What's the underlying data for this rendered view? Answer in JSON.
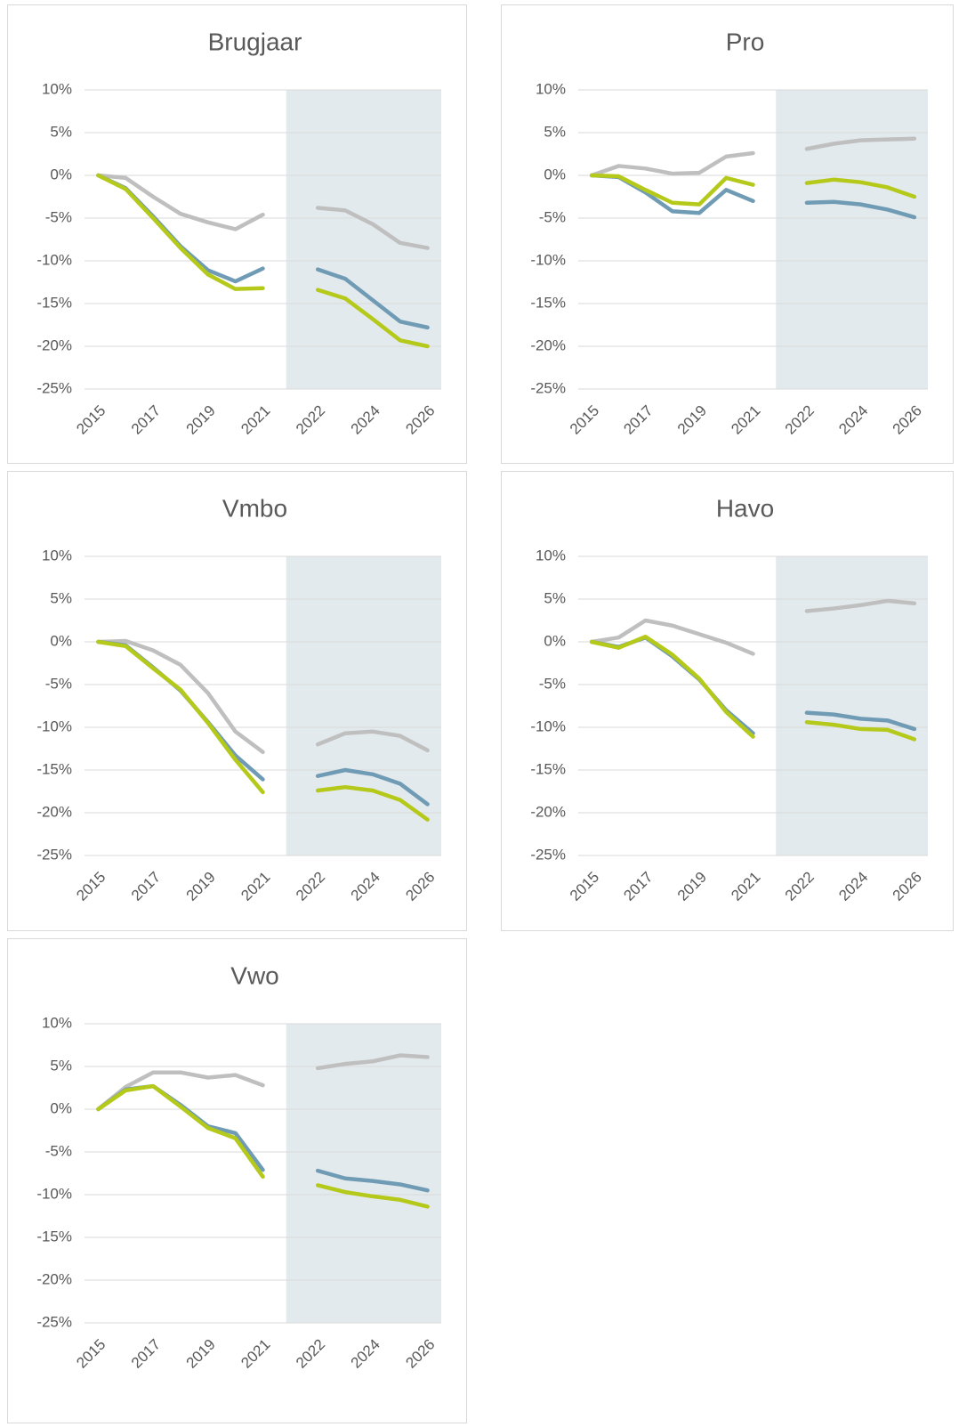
{
  "chart_data": [
    {
      "type": "line",
      "title": "Brugjaar",
      "categories": [
        "2015",
        null,
        "2017",
        null,
        "2019",
        null,
        "2021",
        null,
        "2022",
        null,
        "2024",
        null,
        "2026"
      ],
      "series": [
        {
          "color": "#bfbfbf",
          "values": [
            0,
            -0.3,
            -2.5,
            -4.5,
            -5.5,
            -6.3,
            -4.6,
            null,
            -3.8,
            -4.1,
            -5.7,
            -7.9,
            -8.5
          ]
        },
        {
          "color": "#6f9bb5",
          "values": [
            0,
            -1.5,
            -4.8,
            -8.3,
            -11.1,
            -12.4,
            -10.9,
            null,
            -11.0,
            -12.1,
            -14.6,
            -17.1,
            -17.8
          ]
        },
        {
          "color": "#b5c91a",
          "values": [
            0,
            -1.6,
            -5.0,
            -8.5,
            -11.6,
            -13.3,
            -13.2,
            null,
            -13.4,
            -14.4,
            -16.8,
            -19.3,
            -20.0
          ]
        }
      ],
      "ylim": [
        -25,
        10
      ],
      "yticks": [
        {
          "value": -25,
          "label": "-25%"
        },
        {
          "value": -20,
          "label": "-20%"
        },
        {
          "value": -15,
          "label": "-15%"
        },
        {
          "value": -10,
          "label": "-10%"
        },
        {
          "value": -5,
          "label": "-5%"
        },
        {
          "value": 0,
          "label": "0%"
        },
        {
          "value": 5,
          "label": "5%"
        },
        {
          "value": 10,
          "label": "10%"
        }
      ],
      "grid": true
    },
    {
      "type": "line",
      "title": "Pro",
      "categories": [
        "2015",
        null,
        "2017",
        null,
        "2019",
        null,
        "2021",
        null,
        "2022",
        null,
        "2024",
        null,
        "2026"
      ],
      "series": [
        {
          "color": "#bfbfbf",
          "values": [
            0,
            1.1,
            0.8,
            0.2,
            0.3,
            2.2,
            2.6,
            null,
            3.1,
            3.7,
            4.1,
            4.2,
            4.3
          ]
        },
        {
          "color": "#6f9bb5",
          "values": [
            0,
            -0.2,
            -2.0,
            -4.2,
            -4.4,
            -1.7,
            -3.0,
            null,
            -3.2,
            -3.1,
            -3.4,
            -4.0,
            -4.9
          ]
        },
        {
          "color": "#b5c91a",
          "values": [
            0,
            -0.1,
            -1.7,
            -3.2,
            -3.4,
            -0.3,
            -1.1,
            null,
            -0.9,
            -0.5,
            -0.8,
            -1.4,
            -2.5
          ]
        }
      ],
      "ylim": [
        -25,
        10
      ],
      "yticks": [
        {
          "value": -25,
          "label": "-25%"
        },
        {
          "value": -20,
          "label": "-20%"
        },
        {
          "value": -15,
          "label": "-15%"
        },
        {
          "value": -10,
          "label": "-10%"
        },
        {
          "value": -5,
          "label": "-5%"
        },
        {
          "value": 0,
          "label": "0%"
        },
        {
          "value": 5,
          "label": "5%"
        },
        {
          "value": 10,
          "label": "10%"
        }
      ],
      "grid": true
    },
    {
      "type": "line",
      "title": "Vmbo",
      "categories": [
        "2015",
        null,
        "2017",
        null,
        "2019",
        null,
        "2021",
        null,
        "2022",
        null,
        "2024",
        null,
        "2026"
      ],
      "series": [
        {
          "color": "#bfbfbf",
          "values": [
            0,
            0.1,
            -1.0,
            -2.7,
            -6.0,
            -10.5,
            -12.9,
            null,
            -12.0,
            -10.7,
            -10.5,
            -11.0,
            -12.7
          ]
        },
        {
          "color": "#6f9bb5",
          "values": [
            0,
            -0.4,
            -3.0,
            -5.7,
            -9.4,
            -13.3,
            -16.1,
            null,
            -15.7,
            -15.0,
            -15.5,
            -16.6,
            -19.0
          ]
        },
        {
          "color": "#b5c91a",
          "values": [
            0,
            -0.5,
            -3.1,
            -5.6,
            -9.5,
            -13.8,
            -17.6,
            null,
            -17.4,
            -17.0,
            -17.4,
            -18.5,
            -20.8
          ]
        }
      ],
      "ylim": [
        -25,
        10
      ],
      "yticks": [
        {
          "value": -25,
          "label": "-25%"
        },
        {
          "value": -20,
          "label": "-20%"
        },
        {
          "value": -15,
          "label": "-15%"
        },
        {
          "value": -10,
          "label": "-10%"
        },
        {
          "value": -5,
          "label": "-5%"
        },
        {
          "value": 0,
          "label": "0%"
        },
        {
          "value": 5,
          "label": "5%"
        },
        {
          "value": 10,
          "label": "10%"
        }
      ],
      "grid": true
    },
    {
      "type": "line",
      "title": "Havo",
      "categories": [
        "2015",
        null,
        "2017",
        null,
        "2019",
        null,
        "2021",
        null,
        "2022",
        null,
        "2024",
        null,
        "2026"
      ],
      "series": [
        {
          "color": "#bfbfbf",
          "values": [
            0,
            0.5,
            2.5,
            1.9,
            0.9,
            -0.1,
            -1.4,
            null,
            3.6,
            3.9,
            4.3,
            4.8,
            4.5
          ]
        },
        {
          "color": "#6f9bb5",
          "values": [
            0,
            -0.6,
            0.5,
            -1.7,
            -4.4,
            -8.0,
            -10.7,
            null,
            -8.3,
            -8.5,
            -9.0,
            -9.2,
            -10.2
          ]
        },
        {
          "color": "#b5c91a",
          "values": [
            0,
            -0.7,
            0.6,
            -1.5,
            -4.3,
            -8.2,
            -11.1,
            null,
            -9.4,
            -9.7,
            -10.2,
            -10.3,
            -11.4
          ]
        }
      ],
      "ylim": [
        -25,
        10
      ],
      "yticks": [
        {
          "value": -25,
          "label": "-25%"
        },
        {
          "value": -20,
          "label": "-20%"
        },
        {
          "value": -15,
          "label": "-15%"
        },
        {
          "value": -10,
          "label": "-10%"
        },
        {
          "value": -5,
          "label": "-5%"
        },
        {
          "value": 0,
          "label": "0%"
        },
        {
          "value": 5,
          "label": "5%"
        },
        {
          "value": 10,
          "label": "10%"
        }
      ],
      "grid": true
    },
    {
      "type": "line",
      "title": "Vwo",
      "categories": [
        "2015",
        null,
        "2017",
        null,
        "2019",
        null,
        "2021",
        null,
        "2022",
        null,
        "2024",
        null,
        "2026"
      ],
      "series": [
        {
          "color": "#bfbfbf",
          "values": [
            0,
            2.6,
            4.3,
            4.3,
            3.7,
            4.0,
            2.8,
            null,
            4.8,
            5.3,
            5.6,
            6.3,
            6.1
          ]
        },
        {
          "color": "#6f9bb5",
          "values": [
            0,
            2.3,
            2.7,
            0.5,
            -2.0,
            -2.8,
            -7.1,
            null,
            -7.2,
            -8.1,
            -8.4,
            -8.8,
            -9.5
          ]
        },
        {
          "color": "#b5c91a",
          "values": [
            0,
            2.2,
            2.7,
            0.3,
            -2.2,
            -3.4,
            -7.9,
            null,
            -8.9,
            -9.7,
            -10.2,
            -10.6,
            -11.4
          ]
        }
      ],
      "ylim": [
        -25,
        10
      ],
      "yticks": [
        {
          "value": -25,
          "label": "-25%"
        },
        {
          "value": -20,
          "label": "-20%"
        },
        {
          "value": -15,
          "label": "-15%"
        },
        {
          "value": -10,
          "label": "-10%"
        },
        {
          "value": -5,
          "label": "-5%"
        },
        {
          "value": 0,
          "label": "0%"
        },
        {
          "value": 5,
          "label": "5%"
        },
        {
          "value": 10,
          "label": "10%"
        }
      ],
      "grid": true
    }
  ]
}
